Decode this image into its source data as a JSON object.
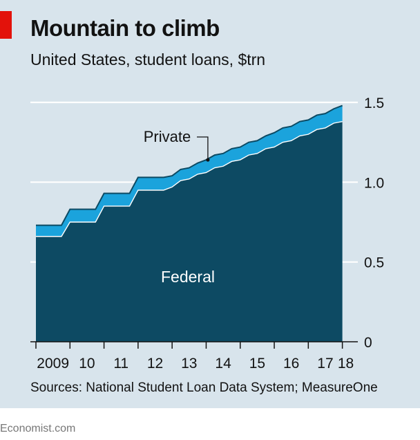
{
  "header": {
    "title": "Mountain to climb",
    "subtitle": "United States, student loans, $trn"
  },
  "source": "Sources: National Student Loan Data System; MeasureOne",
  "footer": "Economist.com",
  "colors": {
    "federal": "#0d4a63",
    "private": "#1ba3dc",
    "background": "#d8e4ec",
    "gridline": "#ffffff",
    "accent": "#e3120b"
  },
  "chart_data": {
    "type": "area",
    "stacked": true,
    "title": "Mountain to climb",
    "subtitle": "United States, student loans, $trn",
    "x": [
      2009.0,
      2009.25,
      2009.5,
      2009.75,
      2010.0,
      2010.25,
      2010.5,
      2010.75,
      2011.0,
      2011.25,
      2011.5,
      2011.75,
      2012.0,
      2012.25,
      2012.5,
      2012.75,
      2013.0,
      2013.25,
      2013.5,
      2013.75,
      2014.0,
      2014.25,
      2014.5,
      2014.75,
      2015.0,
      2015.25,
      2015.5,
      2015.75,
      2016.0,
      2016.25,
      2016.5,
      2016.75,
      2017.0,
      2017.25,
      2017.5,
      2017.75,
      2018.0
    ],
    "series": [
      {
        "name": "Federal",
        "values": [
          0.66,
          0.66,
          0.66,
          0.66,
          0.75,
          0.75,
          0.75,
          0.75,
          0.85,
          0.85,
          0.85,
          0.85,
          0.95,
          0.95,
          0.95,
          0.95,
          0.97,
          1.01,
          1.02,
          1.05,
          1.06,
          1.09,
          1.1,
          1.13,
          1.14,
          1.17,
          1.18,
          1.21,
          1.22,
          1.25,
          1.26,
          1.29,
          1.3,
          1.33,
          1.34,
          1.37,
          1.38
        ]
      },
      {
        "name": "Private",
        "values": [
          0.07,
          0.07,
          0.07,
          0.07,
          0.08,
          0.08,
          0.08,
          0.08,
          0.08,
          0.08,
          0.08,
          0.08,
          0.08,
          0.08,
          0.08,
          0.08,
          0.07,
          0.07,
          0.07,
          0.07,
          0.08,
          0.08,
          0.08,
          0.08,
          0.08,
          0.08,
          0.08,
          0.08,
          0.09,
          0.09,
          0.09,
          0.09,
          0.09,
          0.09,
          0.09,
          0.09,
          0.1
        ]
      }
    ],
    "ylim": [
      0,
      1.5
    ],
    "yticks": [
      0,
      0.5,
      1.0,
      1.5
    ],
    "ytick_labels": [
      "0",
      "0.5",
      "1.0",
      "1.5"
    ],
    "xlim": [
      2009,
      2018.15
    ],
    "xtick_labels": [
      {
        "x": 2009.5,
        "label": "2009"
      },
      {
        "x": 2010.5,
        "label": "10"
      },
      {
        "x": 2011.5,
        "label": "11"
      },
      {
        "x": 2012.5,
        "label": "12"
      },
      {
        "x": 2013.5,
        "label": "13"
      },
      {
        "x": 2014.5,
        "label": "14"
      },
      {
        "x": 2015.5,
        "label": "15"
      },
      {
        "x": 2016.5,
        "label": "16"
      },
      {
        "x": 2017.5,
        "label": "17"
      },
      {
        "x": 2018.1,
        "label": "18"
      }
    ],
    "xticks": [
      2009,
      2010,
      2011,
      2012,
      2013,
      2014,
      2015,
      2016,
      2017,
      2018
    ],
    "grid": true,
    "y_axis_side": "right",
    "annotations": [
      {
        "text": "Private",
        "points_to": {
          "x": 2014.05,
          "y": 1.14
        }
      },
      {
        "text": "Federal",
        "at": {
          "x": 2013.5,
          "y": 0.42
        }
      }
    ],
    "xlabel": "",
    "ylabel": ""
  }
}
